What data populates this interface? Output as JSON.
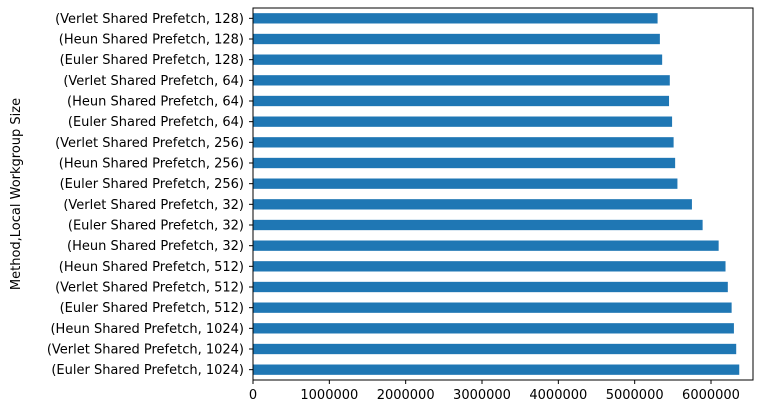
{
  "chart_data": {
    "type": "bar",
    "orientation": "horizontal",
    "title": "",
    "xlabel": "",
    "ylabel": "Method,Local Workgroup Size",
    "categories": [
      "(Euler Shared Prefetch, 1024)",
      "(Verlet Shared Prefetch, 1024)",
      "(Heun Shared Prefetch, 1024)",
      "(Euler Shared Prefetch, 512)",
      "(Verlet Shared Prefetch, 512)",
      "(Heun Shared Prefetch, 512)",
      "(Heun Shared Prefetch, 32)",
      "(Euler Shared Prefetch, 32)",
      "(Verlet Shared Prefetch, 32)",
      "(Euler Shared Prefetch, 256)",
      "(Heun Shared Prefetch, 256)",
      "(Verlet Shared Prefetch, 256)",
      "(Euler Shared Prefetch, 64)",
      "(Heun Shared Prefetch, 64)",
      "(Verlet Shared Prefetch, 64)",
      "(Euler Shared Prefetch, 128)",
      "(Heun Shared Prefetch, 128)",
      "(Verlet Shared Prefetch, 128)"
    ],
    "values": [
      6370000,
      6330000,
      6300000,
      6270000,
      6220000,
      6190000,
      6100000,
      5890000,
      5750000,
      5560000,
      5530000,
      5510000,
      5490000,
      5450000,
      5460000,
      5360000,
      5330000,
      5300000
    ],
    "xlim": [
      0,
      6550000
    ],
    "xticks": [
      0,
      1000000,
      2000000,
      3000000,
      4000000,
      5000000,
      6000000
    ],
    "xtick_labels": [
      "0",
      "1000000",
      "2000000",
      "3000000",
      "4000000",
      "5000000",
      "6000000"
    ],
    "grid": false,
    "legend": "none",
    "colors": {
      "bar": "#1f77b4",
      "axis": "#000000"
    }
  }
}
